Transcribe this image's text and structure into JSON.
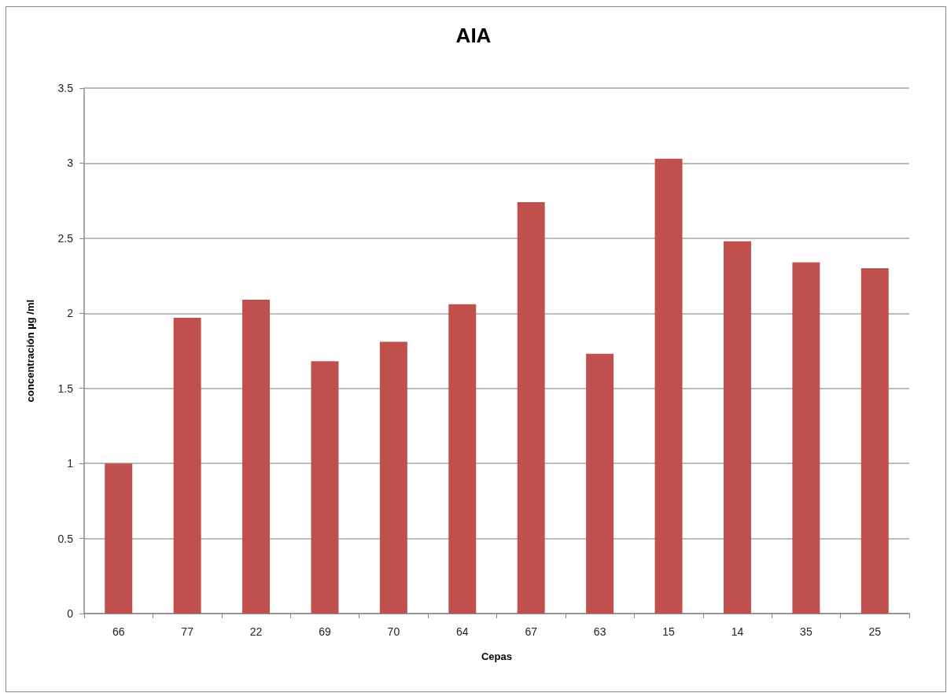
{
  "chart_data": {
    "type": "bar",
    "title": "AIA",
    "xlabel": "Cepas",
    "ylabel": "concentración µg /ml",
    "categories": [
      "66",
      "77",
      "22",
      "69",
      "70",
      "64",
      "67",
      "63",
      "15",
      "14",
      "35",
      "25"
    ],
    "values": [
      1.0,
      1.97,
      2.09,
      1.68,
      1.81,
      2.06,
      2.74,
      1.73,
      3.03,
      2.48,
      2.34,
      2.3
    ],
    "color": "#c0504d",
    "ylim": [
      0,
      3.5
    ],
    "yticks": [
      0,
      0.5,
      1,
      1.5,
      2,
      2.5,
      3,
      3.5
    ],
    "grid": "y"
  }
}
